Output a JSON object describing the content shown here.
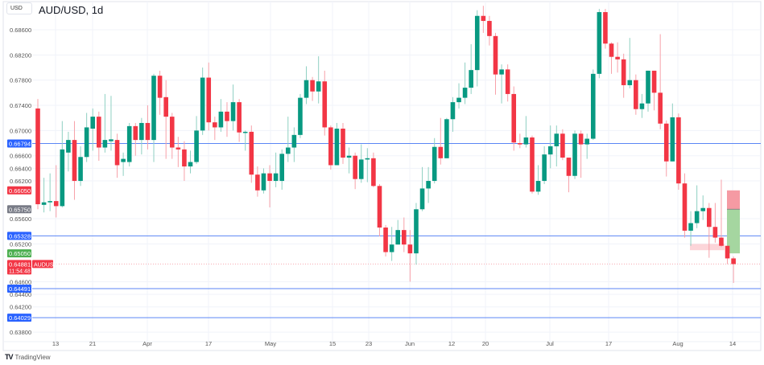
{
  "header": {
    "currency": "USD",
    "title": "AUD/USD, 1d"
  },
  "footer": {
    "brand": "TradingView",
    "brand_icon": "tradingview-logo-icon"
  },
  "colors": {
    "up": "#089981",
    "down": "#f23645",
    "hline": "#5b86f5",
    "grid": "#f0f3fa"
  },
  "chart_data": {
    "type": "candlestick",
    "symbol": "AUDUSD",
    "interval": "1d",
    "ylim": [
      0.637,
      0.69
    ],
    "grid": true,
    "y_ticks": [
      "0.68600",
      "0.68200",
      "0.67800",
      "0.67400",
      "0.67000",
      "0.66600",
      "0.66400",
      "0.66200",
      "0.65600",
      "0.65200",
      "0.64600",
      "0.64400",
      "0.64200",
      "0.63800"
    ],
    "x_ticks": [
      "13",
      "21",
      "Apr",
      "17",
      "May",
      "15",
      "23",
      "Jun",
      "12",
      "20",
      "Jul",
      "17",
      "Aug",
      "14"
    ],
    "horizontal_lines": [
      0.66794,
      0.65328,
      0.64491,
      0.64029
    ],
    "price_badges": [
      {
        "value": "0.66794",
        "kind": "hline"
      },
      {
        "value": "0.66050",
        "kind": "stop"
      },
      {
        "value": "0.65750",
        "kind": "entry"
      },
      {
        "value": "0.65328",
        "kind": "hline"
      },
      {
        "value": "0.65050",
        "kind": "target"
      },
      {
        "value": "0.64491",
        "kind": "hline"
      },
      {
        "value": "0.64029",
        "kind": "hline"
      }
    ],
    "last_price": {
      "value": "0.64881",
      "symbol": "AUDUSD",
      "countdown": "11:54:48"
    },
    "position_tool": {
      "stop": 0.6605,
      "entry": 0.6575,
      "target": 0.6505
    },
    "zone": {
      "top": 0.652,
      "bottom": 0.651
    },
    "candles": [
      [
        0.6735,
        0.675,
        0.6575,
        0.6583
      ],
      [
        0.6582,
        0.6625,
        0.657,
        0.6586
      ],
      [
        0.6586,
        0.6632,
        0.6572,
        0.6588
      ],
      [
        0.6588,
        0.6645,
        0.6562,
        0.658
      ],
      [
        0.658,
        0.6715,
        0.6578,
        0.667
      ],
      [
        0.6665,
        0.6698,
        0.6635,
        0.6685
      ],
      [
        0.6685,
        0.6715,
        0.659,
        0.662
      ],
      [
        0.662,
        0.6675,
        0.6612,
        0.6658
      ],
      [
        0.6658,
        0.6728,
        0.665,
        0.6705
      ],
      [
        0.6703,
        0.6735,
        0.6668,
        0.6722
      ],
      [
        0.6722,
        0.673,
        0.6652,
        0.6673
      ],
      [
        0.6673,
        0.6758,
        0.6665,
        0.6685
      ],
      [
        0.6683,
        0.6755,
        0.6668,
        0.6686
      ],
      [
        0.6685,
        0.6695,
        0.6625,
        0.6645
      ],
      [
        0.665,
        0.6665,
        0.6628,
        0.6655
      ],
      [
        0.665,
        0.6712,
        0.6643,
        0.6707
      ],
      [
        0.6707,
        0.6712,
        0.666,
        0.6685
      ],
      [
        0.6685,
        0.672,
        0.6662,
        0.6712
      ],
      [
        0.6712,
        0.674,
        0.667,
        0.6685
      ],
      [
        0.6685,
        0.679,
        0.665,
        0.6787
      ],
      [
        0.6787,
        0.6795,
        0.6725,
        0.6752
      ],
      [
        0.6753,
        0.678,
        0.6655,
        0.6722
      ],
      [
        0.6722,
        0.6728,
        0.6655,
        0.6673
      ],
      [
        0.6673,
        0.669,
        0.6642,
        0.667
      ],
      [
        0.667,
        0.6683,
        0.662,
        0.6643
      ],
      [
        0.6643,
        0.6668,
        0.6632,
        0.665
      ],
      [
        0.665,
        0.6723,
        0.6647,
        0.67
      ],
      [
        0.67,
        0.68,
        0.6693,
        0.6784
      ],
      [
        0.6784,
        0.6808,
        0.67,
        0.6713
      ],
      [
        0.6713,
        0.6722,
        0.6685,
        0.6705
      ],
      [
        0.6705,
        0.675,
        0.6698,
        0.673
      ],
      [
        0.673,
        0.6745,
        0.669,
        0.6715
      ],
      [
        0.6715,
        0.6773,
        0.67,
        0.6745
      ],
      [
        0.6745,
        0.675,
        0.6682,
        0.6697
      ],
      [
        0.6697,
        0.67,
        0.6668,
        0.6698
      ],
      [
        0.6698,
        0.6708,
        0.6617,
        0.663
      ],
      [
        0.663,
        0.6643,
        0.6595,
        0.6605
      ],
      [
        0.6605,
        0.664,
        0.66,
        0.6632
      ],
      [
        0.6632,
        0.6645,
        0.6578,
        0.662
      ],
      [
        0.662,
        0.6665,
        0.661,
        0.6632
      ],
      [
        0.662,
        0.667,
        0.6606,
        0.6663
      ],
      [
        0.6663,
        0.6722,
        0.665,
        0.6673
      ],
      [
        0.6673,
        0.6705,
        0.665,
        0.6693
      ],
      [
        0.6693,
        0.6758,
        0.6688,
        0.6752
      ],
      [
        0.6752,
        0.6802,
        0.6742,
        0.678
      ],
      [
        0.678,
        0.6785,
        0.6747,
        0.6762
      ],
      [
        0.6762,
        0.6818,
        0.6743,
        0.6778
      ],
      [
        0.6778,
        0.6795,
        0.6692,
        0.6705
      ],
      [
        0.6705,
        0.6708,
        0.6638,
        0.6645
      ],
      [
        0.6645,
        0.6712,
        0.6645,
        0.6703
      ],
      [
        0.6703,
        0.6712,
        0.6647,
        0.6657
      ],
      [
        0.6657,
        0.6673,
        0.6632,
        0.666
      ],
      [
        0.666,
        0.6665,
        0.6607,
        0.6623
      ],
      [
        0.6623,
        0.6678,
        0.6617,
        0.6654
      ],
      [
        0.6654,
        0.6672,
        0.6618,
        0.6656
      ],
      [
        0.6656,
        0.6665,
        0.661,
        0.6612
      ],
      [
        0.6612,
        0.6615,
        0.6532,
        0.6546
      ],
      [
        0.6546,
        0.655,
        0.65,
        0.6507
      ],
      [
        0.6507,
        0.6547,
        0.6493,
        0.6519
      ],
      [
        0.6519,
        0.6558,
        0.6519,
        0.6542
      ],
      [
        0.6542,
        0.6562,
        0.6507,
        0.6519
      ],
      [
        0.6519,
        0.6542,
        0.646,
        0.6505
      ],
      [
        0.6505,
        0.6585,
        0.6487,
        0.6575
      ],
      [
        0.6575,
        0.6642,
        0.6572,
        0.6608
      ],
      [
        0.6608,
        0.6642,
        0.6585,
        0.662
      ],
      [
        0.662,
        0.6688,
        0.6616,
        0.6674
      ],
      [
        0.6674,
        0.672,
        0.6646,
        0.6656
      ],
      [
        0.6656,
        0.672,
        0.6656,
        0.6718
      ],
      [
        0.6718,
        0.6753,
        0.6698,
        0.6745
      ],
      [
        0.6745,
        0.6775,
        0.6735,
        0.6752
      ],
      [
        0.6752,
        0.6808,
        0.6742,
        0.6768
      ],
      [
        0.6768,
        0.6837,
        0.6758,
        0.6796
      ],
      [
        0.6796,
        0.6891,
        0.677,
        0.6882
      ],
      [
        0.6882,
        0.6898,
        0.6855,
        0.6874
      ],
      [
        0.6874,
        0.6882,
        0.6835,
        0.685
      ],
      [
        0.685,
        0.6855,
        0.6757,
        0.6789
      ],
      [
        0.6789,
        0.6805,
        0.6743,
        0.6797
      ],
      [
        0.6797,
        0.6805,
        0.6746,
        0.6758
      ],
      [
        0.6758,
        0.677,
        0.6668,
        0.6681
      ],
      [
        0.668,
        0.6695,
        0.6672,
        0.6678
      ],
      [
        0.6678,
        0.6723,
        0.6673,
        0.6689
      ],
      [
        0.6689,
        0.6692,
        0.66,
        0.6603
      ],
      [
        0.6603,
        0.6645,
        0.6598,
        0.662
      ],
      [
        0.662,
        0.6675,
        0.6615,
        0.6662
      ],
      [
        0.6662,
        0.6708,
        0.664,
        0.6675
      ],
      [
        0.6675,
        0.6708,
        0.6643,
        0.6695
      ],
      [
        0.6695,
        0.6702,
        0.6653,
        0.6657
      ],
      [
        0.6657,
        0.6657,
        0.6602,
        0.6628
      ],
      [
        0.6628,
        0.67,
        0.6623,
        0.6695
      ],
      [
        0.6695,
        0.67,
        0.6625,
        0.6678
      ],
      [
        0.6678,
        0.6695,
        0.6655,
        0.6687
      ],
      [
        0.6687,
        0.6797,
        0.6685,
        0.679
      ],
      [
        0.679,
        0.6893,
        0.6783,
        0.6888
      ],
      [
        0.6888,
        0.6893,
        0.683,
        0.6838
      ],
      [
        0.6838,
        0.684,
        0.679,
        0.6817
      ],
      [
        0.6817,
        0.684,
        0.6792,
        0.6813
      ],
      [
        0.6813,
        0.6822,
        0.6752,
        0.6772
      ],
      [
        0.6772,
        0.6847,
        0.6767,
        0.678
      ],
      [
        0.678,
        0.6789,
        0.6725,
        0.6734
      ],
      [
        0.6734,
        0.6758,
        0.672,
        0.6743
      ],
      [
        0.6743,
        0.6795,
        0.673,
        0.6795
      ],
      [
        0.6795,
        0.6795,
        0.6732,
        0.676
      ],
      [
        0.676,
        0.6853,
        0.6702,
        0.6711
      ],
      [
        0.6711,
        0.6716,
        0.6627,
        0.6651
      ],
      [
        0.6651,
        0.6743,
        0.6651,
        0.6721
      ],
      [
        0.6721,
        0.6727,
        0.6606,
        0.6616
      ],
      [
        0.6616,
        0.6632,
        0.653,
        0.6541
      ],
      [
        0.6541,
        0.6572,
        0.6517,
        0.6553
      ],
      [
        0.6553,
        0.6613,
        0.6545,
        0.6572
      ],
      [
        0.6572,
        0.6597,
        0.6558,
        0.6577
      ],
      [
        0.6577,
        0.6585,
        0.6498,
        0.6547
      ],
      [
        0.6547,
        0.6585,
        0.6522,
        0.653
      ],
      [
        0.653,
        0.6622,
        0.6515,
        0.6517
      ],
      [
        0.6517,
        0.6517,
        0.6488,
        0.6497
      ],
      [
        0.6497,
        0.65,
        0.6458,
        0.6488
      ]
    ]
  }
}
